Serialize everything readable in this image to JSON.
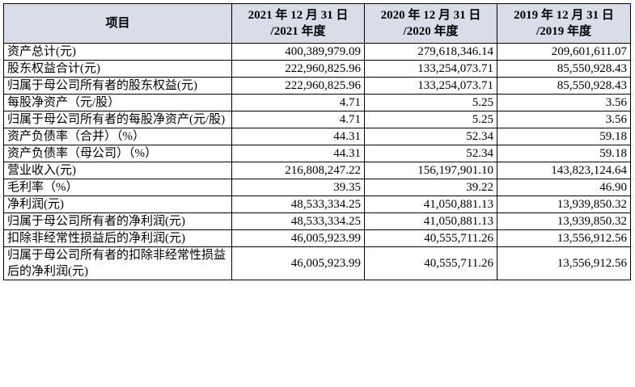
{
  "table": {
    "header": {
      "item": "项目",
      "col1": [
        "2021 年 12 月 31 日",
        "/2021 年度"
      ],
      "col2": [
        "2020 年 12 月 31 日",
        "/2020 年度"
      ],
      "col3": [
        "2019 年 12 月 31 日",
        "/2019 年度"
      ]
    },
    "rows": [
      {
        "label": "资产总计(元)",
        "v2021": "400,389,979.09",
        "v2020": "279,618,346.14",
        "v2019": "209,601,611.07"
      },
      {
        "label": "股东权益合计(元)",
        "v2021": "222,960,825.96",
        "v2020": "133,254,073.71",
        "v2019": "85,550,928.43"
      },
      {
        "label": "归属于母公司所有者的股东权益(元)",
        "v2021": "222,960,825.96",
        "v2020": "133,254,073.71",
        "v2019": "85,550,928.43"
      },
      {
        "label": "每股净资产（元/股）",
        "v2021": "4.71",
        "v2020": "5.25",
        "v2019": "3.56"
      },
      {
        "label": "归属于母公司所有者的每股净资产(元/股)",
        "v2021": "4.71",
        "v2020": "5.25",
        "v2019": "3.56"
      },
      {
        "label": "资产负债率（合并）（%）",
        "v2021": "44.31",
        "v2020": "52.34",
        "v2019": "59.18"
      },
      {
        "label": "资产负债率（母公司）（%）",
        "v2021": "44.31",
        "v2020": "52.34",
        "v2019": "59.18"
      },
      {
        "label": "营业收入(元)",
        "v2021": "216,808,247.22",
        "v2020": "156,197,901.10",
        "v2019": "143,823,124.64"
      },
      {
        "label": "毛利率（%）",
        "v2021": "39.35",
        "v2020": "39.22",
        "v2019": "46.90"
      },
      {
        "label": "净利润(元)",
        "v2021": "48,533,334.25",
        "v2020": "41,050,881.13",
        "v2019": "13,939,850.32"
      },
      {
        "label": "归属于母公司所有者的净利润(元)",
        "v2021": "48,533,334.25",
        "v2020": "41,050,881.13",
        "v2019": "13,939,850.32"
      },
      {
        "label": "扣除非经常性损益后的净利润(元)",
        "v2021": "46,005,923.99",
        "v2020": "40,555,711.26",
        "v2019": "13,556,912.56"
      },
      {
        "label": "归属于母公司所有者的扣除非经常性损益后的净利润(元)",
        "v2021": "46,005,923.99",
        "v2020": "40,555,711.26",
        "v2019": "13,556,912.56"
      }
    ]
  }
}
